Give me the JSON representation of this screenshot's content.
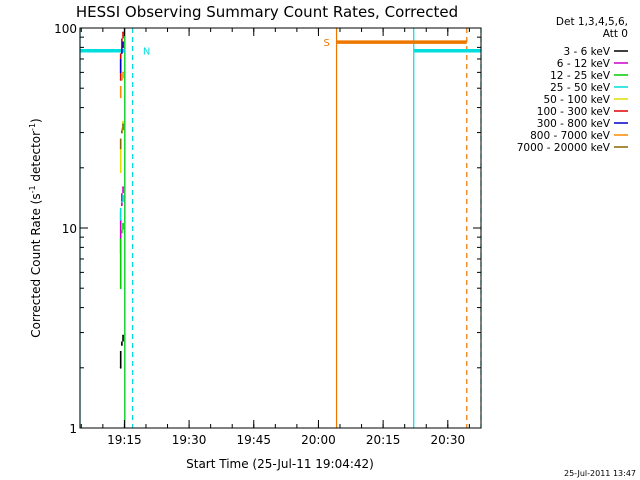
{
  "chart_data": {
    "type": "line",
    "title": "HESSI Observing Summary Count Rates, Corrected",
    "xlabel": "Start Time (25-Jul-11 19:04:42)",
    "ylabel_main": "Corrected Count Rate (s",
    "ylabel_sup1": "-1",
    "ylabel_mid": " detector",
    "ylabel_sup2": "-1",
    "ylabel_end": ")",
    "y_scale": "log",
    "ylim": [
      1,
      100
    ],
    "xlim": [
      "19:04:42",
      "20:37:42"
    ],
    "x_ticks": [
      "19:15",
      "19:30",
      "19:45",
      "20:00",
      "20:15",
      "20:30"
    ],
    "y_ticks": [
      "1",
      "10",
      "100"
    ],
    "legend_header": [
      "Det 1,3,4,5,6,",
      "Att 0"
    ],
    "legend_position": "right",
    "series": [
      {
        "name": "3 - 6 keV",
        "color": "#000000",
        "x": [
          "19:14:50",
          "19:14:58",
          "19:15:06"
        ],
        "y": [
          2.0,
          2.6,
          2.9
        ]
      },
      {
        "name": "6 - 12 keV",
        "color": "#cc00cc",
        "x": [
          "19:14:50",
          "19:14:58",
          "19:15:06"
        ],
        "y": [
          7.5,
          13.0,
          16.0
        ]
      },
      {
        "name": "12 - 25 keV",
        "color": "#00cc00",
        "x": [
          "19:14:50",
          "19:14:58",
          "19:15:06"
        ],
        "y": [
          5.0,
          9.5,
          10.5
        ]
      },
      {
        "name": "25 - 50 keV",
        "color": "#00dddd",
        "x": [
          "19:14:50",
          "19:14:58",
          "19:15:06"
        ],
        "y": [
          11.0,
          13.5,
          14.5
        ]
      },
      {
        "name": "50 - 100 keV",
        "color": "#dddd00",
        "x": [
          "19:14:50",
          "19:14:58",
          "19:15:06"
        ],
        "y": [
          19.0,
          30.0,
          34.0
        ]
      },
      {
        "name": "100 - 300 keV",
        "color": "#dd0000",
        "x": [
          "19:14:50",
          "19:14:58",
          "19:15:06"
        ],
        "y": [
          55.0,
          80.0,
          95.0
        ]
      },
      {
        "name": "300 - 800 keV",
        "color": "#0000cc",
        "x": [
          "19:14:50",
          "19:14:58",
          "19:15:06"
        ],
        "y": [
          60.0,
          75.0,
          85.0
        ]
      },
      {
        "name": "800 - 7000 keV",
        "color": "#ff8800",
        "x": [
          "19:14:50",
          "19:14:58",
          "19:15:06"
        ],
        "y": [
          45.0,
          55.0,
          60.0
        ]
      },
      {
        "name": "7000 - 20000 keV",
        "color": "#886600",
        "x": [
          "19:14:50",
          "19:14:58",
          "19:15:06"
        ],
        "y": [
          25.0,
          30.0,
          33.0
        ]
      }
    ],
    "annotations": [
      {
        "label": "N",
        "color": "#00dddd"
      },
      {
        "label": "S",
        "color": "#ee7700"
      }
    ],
    "night_bars": [
      {
        "color": "#00dddd",
        "x_start": "19:04:42",
        "x_end": "19:15:06",
        "y": 77
      },
      {
        "color": "#00dddd",
        "x_start": "20:22:06",
        "x_end": "20:37:42",
        "y": 77
      }
    ],
    "saa_bars": [
      {
        "color": "#ee7700",
        "x_start": "20:04:12",
        "x_end": "20:34:24",
        "y": 85
      }
    ],
    "vlines": [
      {
        "color": "#00dddd",
        "x": "19:04:42",
        "style": "solid"
      },
      {
        "color": "#00dddd",
        "x": "19:15:06",
        "style": "solid"
      },
      {
        "color": "#00cc00",
        "x": "19:15:06",
        "style": "solid"
      },
      {
        "color": "#00dddd",
        "x": "19:16:54",
        "style": "dashed"
      },
      {
        "color": "#ee7700",
        "x": "20:04:12",
        "style": "solid"
      },
      {
        "color": "#00dddd",
        "x": "20:22:06",
        "style": "solid"
      },
      {
        "color": "#ee7700",
        "x": "20:34:24",
        "style": "dashed"
      },
      {
        "color": "#00dddd",
        "x": "20:37:42",
        "style": "dashed"
      }
    ],
    "footer_date": "25-Jul-2011 13:47"
  }
}
